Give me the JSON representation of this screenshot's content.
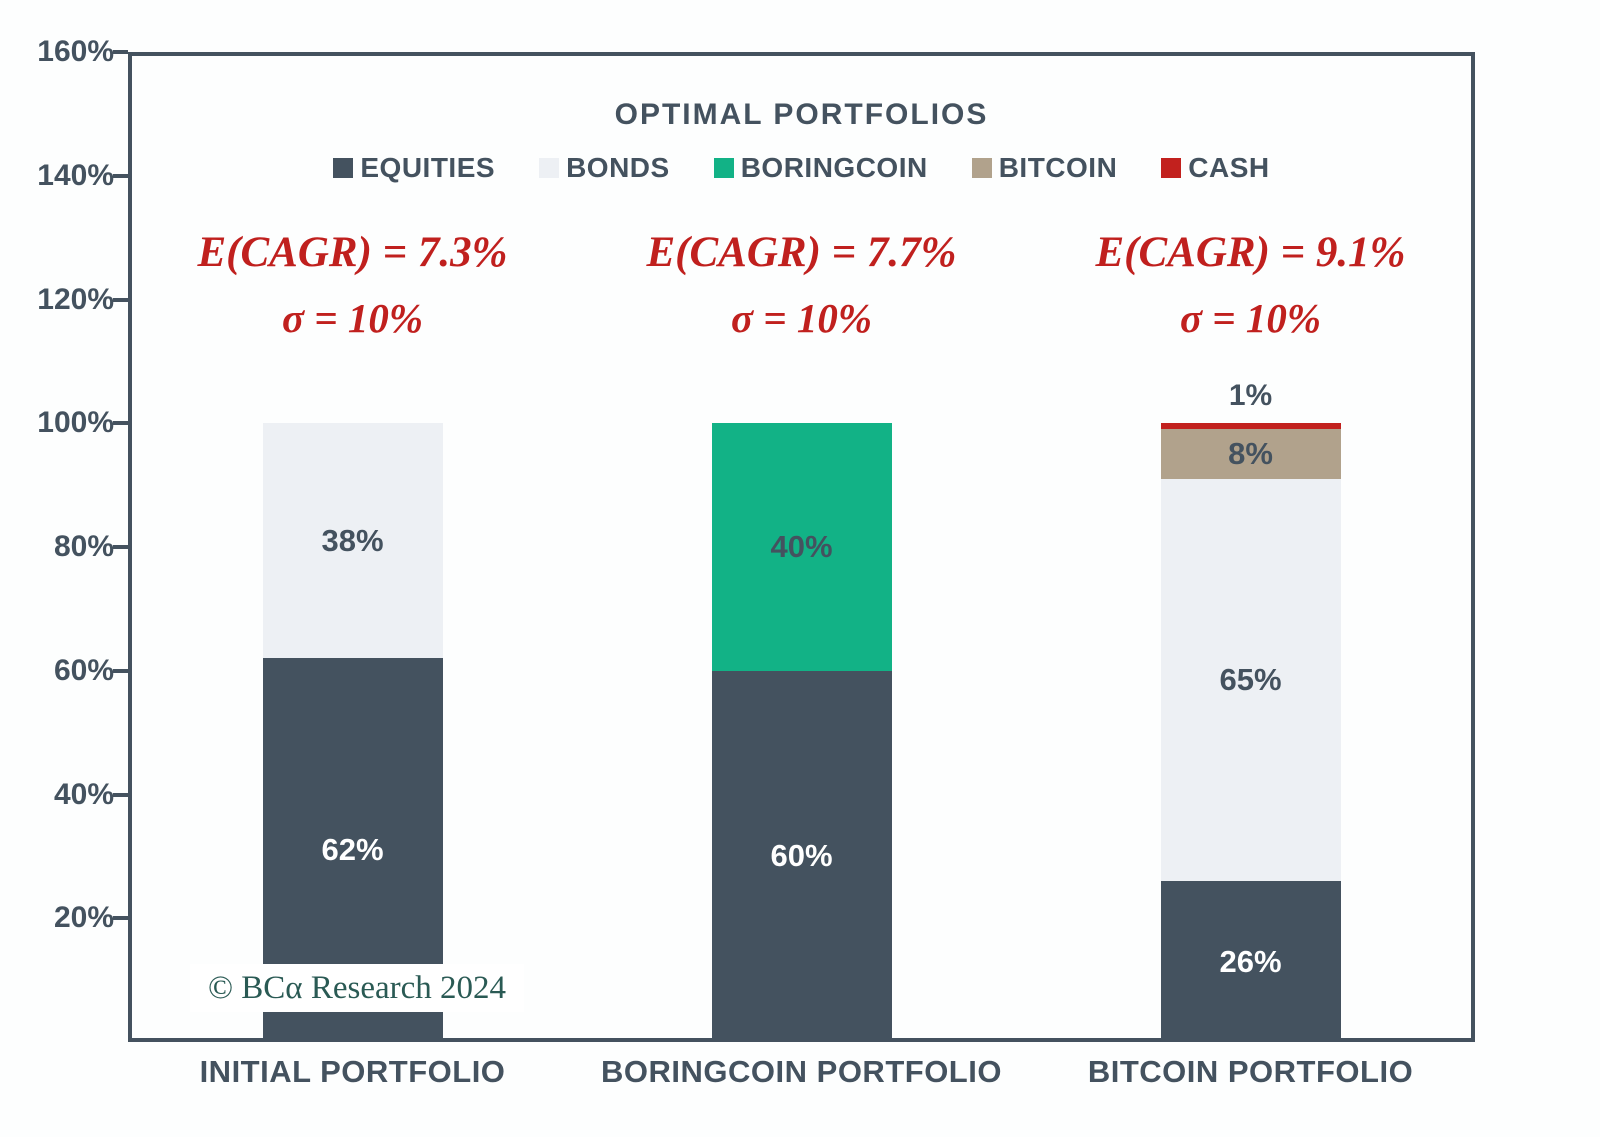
{
  "chart_data": {
    "type": "bar",
    "stacked": true,
    "title": "OPTIMAL PORTFOLIOS",
    "categories": [
      "INITIAL PORTFOLIO",
      "BORINGCOIN PORTFOLIO",
      "BITCOIN PORTFOLIO"
    ],
    "series": [
      {
        "name": "EQUITIES",
        "color": "#44525f",
        "label_color": "#ffffff",
        "values": [
          62,
          60,
          26
        ]
      },
      {
        "name": "BONDS",
        "color": "#edf0f4",
        "label_color": "#44525f",
        "values": [
          38,
          0,
          65
        ]
      },
      {
        "name": "BORINGCOIN",
        "color": "#12b286",
        "label_color": "#44525f",
        "values": [
          0,
          40,
          0
        ]
      },
      {
        "name": "BITCOIN",
        "color": "#b1a28c",
        "label_color": "#44525f",
        "values": [
          0,
          0,
          8
        ]
      },
      {
        "name": "CASH",
        "color": "#c2211e",
        "label_color": "#44525f",
        "values": [
          0,
          0,
          1
        ],
        "label_outside": true
      }
    ],
    "ylim": [
      0,
      160
    ],
    "yticks": [
      {
        "value": 20,
        "label": "20%"
      },
      {
        "value": 40,
        "label": "40%"
      },
      {
        "value": 60,
        "label": "60%"
      },
      {
        "value": 80,
        "label": "80%"
      },
      {
        "value": 100,
        "label": "100%"
      },
      {
        "value": 120,
        "label": "120%"
      },
      {
        "value": 140,
        "label": "140%"
      },
      {
        "value": 160,
        "label": "160%"
      }
    ],
    "grid": false,
    "legend_position": "top",
    "annotations": [
      {
        "cagr": "E(CAGR) = 7.3%",
        "sigma": "σ = 10%"
      },
      {
        "cagr": "E(CAGR) = 7.7%",
        "sigma": "σ = 10%"
      },
      {
        "cagr": "E(CAGR) = 9.1%",
        "sigma": "σ = 10%"
      }
    ],
    "annotation_color": "#c0201e",
    "axis_color": "#44525f",
    "copyright": "© BCα Research 2024",
    "copyright_color": "#2a5a54"
  }
}
